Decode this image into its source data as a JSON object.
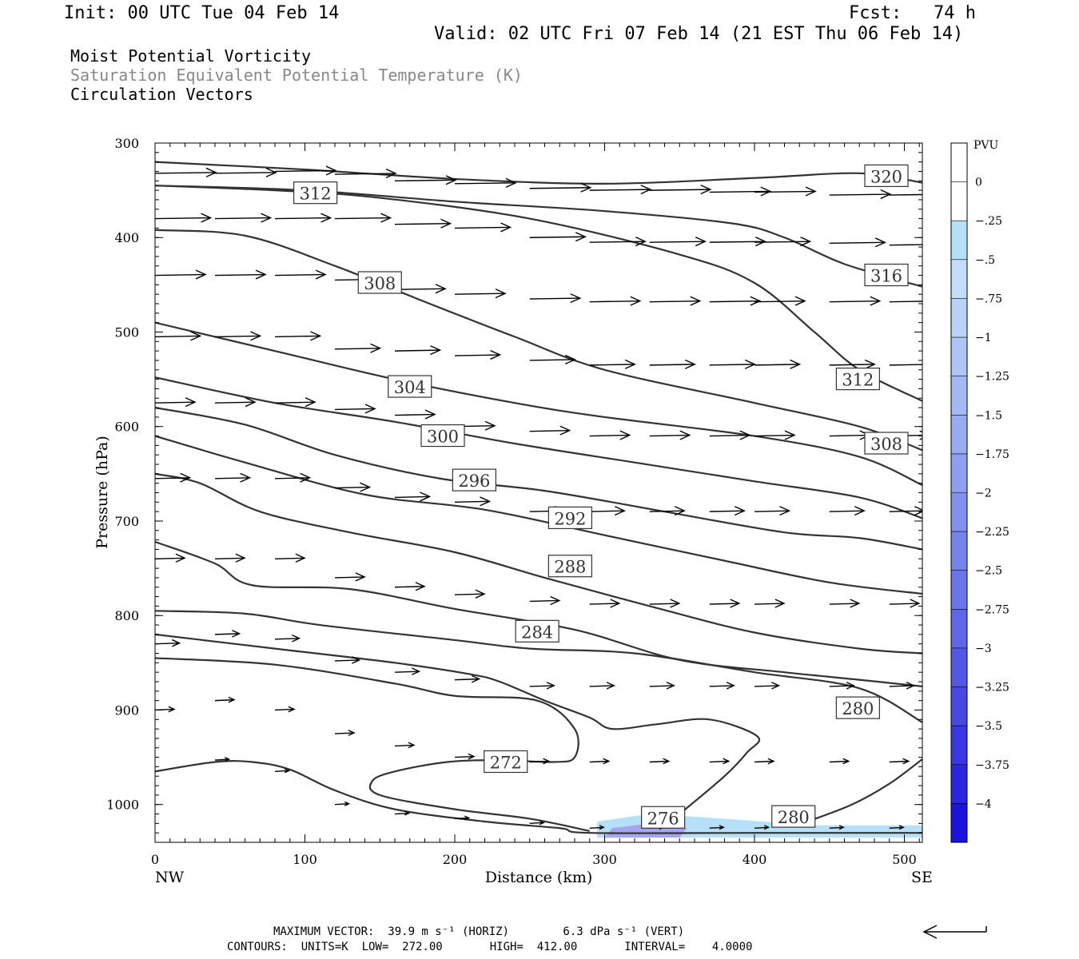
{
  "header": {
    "init": "Init: 00 UTC Tue 04 Feb 14",
    "fcst": "Fcst:   74 h",
    "valid": "Valid: 02 UTC Fri 07 Feb 14 (21 EST Thu 06 Feb 14)",
    "field1": "Moist Potential Vorticity",
    "field2": "Saturation Equivalent Potential Temperature (K)",
    "field3": "Circulation Vectors"
  },
  "footer": {
    "max_vector": "MAXIMUM VECTOR:  39.9 m s⁻¹ (HORIZ)        6.3 dPa s⁻¹ (VERT)",
    "contours": "CONTOURS:  UNITS=K  LOW=  272.00       HIGH=  412.00       INTERVAL=    4.0000"
  },
  "colors": {
    "contour": "#333333",
    "label_box": "#333333",
    "vector": "#000000",
    "pv_light": "#b5e0f8",
    "pv_mid": "#a5a5f0"
  },
  "chart_data": {
    "type": "contour-cross-section",
    "xlabel": "Distance (km)",
    "ylabel": "Pressure (hPa)",
    "x_ticks": [
      "0",
      "100",
      "200",
      "300",
      "400",
      "500"
    ],
    "y_ticks": [
      "300",
      "400",
      "500",
      "600",
      "700",
      "800",
      "900",
      "1000"
    ],
    "xlim": [
      0,
      512
    ],
    "ylim": [
      300,
      1040
    ],
    "x_end_labels": {
      "left": "NW",
      "right": "SE"
    },
    "colorbar": {
      "title": "PVU",
      "labels": [
        "0",
        "-.25",
        "-.5",
        "-.75",
        "-1",
        "-1.25",
        "-1.5",
        "-1.75",
        "-2",
        "-2.25",
        "-2.5",
        "-2.75",
        "-3",
        "-3.25",
        "-3.5",
        "-3.75",
        "-4"
      ],
      "colors": [
        "#ffffff",
        "#ffffff",
        "#b5e0f8",
        "#c2defa",
        "#b8d3f8",
        "#adc6f6",
        "#a3b9f4",
        "#98acf2",
        "#8d9ff0",
        "#8291ee",
        "#7783ec",
        "#6b75ea",
        "#5f66e8",
        "#5357e6",
        "#4647e4",
        "#3837e2",
        "#2a26e0",
        "#1a12dd"
      ]
    },
    "contour_labels": [
      {
        "value": "320",
        "x": 488,
        "p": 335
      },
      {
        "value": "312",
        "x": 107,
        "p": 353
      },
      {
        "value": "316",
        "x": 488,
        "p": 440
      },
      {
        "value": "308",
        "x": 150,
        "p": 448
      },
      {
        "value": "312",
        "x": 469,
        "p": 550
      },
      {
        "value": "304",
        "x": 170,
        "p": 558
      },
      {
        "value": "308",
        "x": 488,
        "p": 618
      },
      {
        "value": "300",
        "x": 192,
        "p": 610
      },
      {
        "value": "296",
        "x": 213,
        "p": 657
      },
      {
        "value": "292",
        "x": 277,
        "p": 697
      },
      {
        "value": "288",
        "x": 277,
        "p": 748
      },
      {
        "value": "284",
        "x": 255,
        "p": 817
      },
      {
        "value": "280",
        "x": 469,
        "p": 898
      },
      {
        "value": "272",
        "x": 234,
        "p": 955
      },
      {
        "value": "276",
        "x": 339,
        "p": 1014
      },
      {
        "value": "280",
        "x": 426,
        "p": 1013
      }
    ],
    "contours": [
      {
        "value": 320,
        "points": [
          [
            0,
            320
          ],
          [
            100,
            328
          ],
          [
            200,
            338
          ],
          [
            300,
            343
          ],
          [
            400,
            337
          ],
          [
            470,
            332
          ],
          [
            512,
            342
          ]
        ]
      },
      {
        "value": 316,
        "points": [
          [
            0,
            345
          ],
          [
            100,
            350
          ],
          [
            200,
            362
          ],
          [
            300,
            372
          ],
          [
            385,
            385
          ],
          [
            420,
            400
          ],
          [
            460,
            428
          ],
          [
            512,
            452
          ]
        ]
      },
      {
        "value": 312,
        "points": [
          [
            0,
            345
          ],
          [
            80,
            350
          ],
          [
            150,
            358
          ],
          [
            250,
            380
          ],
          [
            350,
            418
          ],
          [
            400,
            448
          ],
          [
            440,
            500
          ],
          [
            470,
            540
          ],
          [
            512,
            573
          ]
        ]
      },
      {
        "value": 308,
        "points": [
          [
            0,
            392
          ],
          [
            60,
            398
          ],
          [
            120,
            430
          ],
          [
            180,
            468
          ],
          [
            240,
            505
          ],
          [
            300,
            540
          ],
          [
            400,
            575
          ],
          [
            470,
            600
          ],
          [
            512,
            625
          ]
        ]
      },
      {
        "value": 304,
        "points": [
          [
            0,
            490
          ],
          [
            80,
            520
          ],
          [
            160,
            550
          ],
          [
            240,
            575
          ],
          [
            300,
            590
          ],
          [
            400,
            610
          ],
          [
            470,
            632
          ],
          [
            512,
            662
          ]
        ]
      },
      {
        "value": 300,
        "points": [
          [
            0,
            548
          ],
          [
            80,
            575
          ],
          [
            160,
            595
          ],
          [
            240,
            618
          ],
          [
            320,
            638
          ],
          [
            400,
            658
          ],
          [
            470,
            675
          ],
          [
            512,
            697
          ]
        ]
      },
      {
        "value": 296,
        "points": [
          [
            0,
            580
          ],
          [
            60,
            598
          ],
          [
            120,
            630
          ],
          [
            190,
            655
          ],
          [
            260,
            668
          ],
          [
            340,
            690
          ],
          [
            420,
            712
          ],
          [
            470,
            718
          ],
          [
            512,
            730
          ]
        ]
      },
      {
        "value": 292,
        "points": [
          [
            0,
            610
          ],
          [
            60,
            638
          ],
          [
            140,
            672
          ],
          [
            220,
            688
          ],
          [
            300,
            715
          ],
          [
            380,
            742
          ],
          [
            450,
            765
          ],
          [
            512,
            777
          ]
        ]
      },
      {
        "value": 288,
        "points": [
          [
            0,
            650
          ],
          [
            30,
            660
          ],
          [
            70,
            690
          ],
          [
            130,
            712
          ],
          [
            200,
            733
          ],
          [
            260,
            760
          ],
          [
            330,
            790
          ],
          [
            400,
            818
          ],
          [
            470,
            835
          ],
          [
            512,
            840
          ]
        ]
      },
      {
        "value": 284,
        "points": [
          [
            0,
            722
          ],
          [
            40,
            745
          ],
          [
            65,
            768
          ],
          [
            130,
            772
          ],
          [
            200,
            793
          ],
          [
            280,
            815
          ],
          [
            350,
            847
          ],
          [
            420,
            860
          ],
          [
            470,
            868
          ],
          [
            512,
            875
          ]
        ]
      },
      {
        "value": 280,
        "points": [
          [
            0,
            795
          ],
          [
            60,
            798
          ],
          [
            110,
            810
          ],
          [
            200,
            826
          ],
          [
            250,
            835
          ],
          [
            320,
            840
          ],
          [
            400,
            860
          ],
          [
            470,
            877
          ],
          [
            512,
            913
          ]
        ]
      },
      {
        "value": 276,
        "points": [
          [
            0,
            820
          ],
          [
            80,
            835
          ],
          [
            160,
            850
          ],
          [
            210,
            862
          ],
          [
            230,
            870
          ],
          [
            260,
            890
          ],
          [
            290,
            908
          ],
          [
            305,
            920
          ],
          [
            335,
            915
          ],
          [
            370,
            910
          ],
          [
            402,
            928
          ],
          [
            395,
            945
          ],
          [
            380,
            970
          ],
          [
            350,
            1010
          ]
        ]
      },
      {
        "value": 272,
        "points": [
          [
            0,
            845
          ],
          [
            80,
            852
          ],
          [
            160,
            872
          ],
          [
            200,
            885
          ],
          [
            255,
            890
          ],
          [
            280,
            920
          ],
          [
            280,
            950
          ],
          [
            265,
            955
          ],
          [
            230,
            953
          ],
          [
            195,
            955
          ],
          [
            160,
            965
          ],
          [
            145,
            975
          ],
          [
            150,
            990
          ],
          [
            200,
            1005
          ],
          [
            250,
            1015
          ],
          [
            290,
            1028
          ]
        ]
      },
      {
        "value": 272,
        "points": [
          [
            0,
            965
          ],
          [
            40,
            955
          ],
          [
            65,
            955
          ],
          [
            90,
            963
          ],
          [
            120,
            985
          ],
          [
            160,
            1005
          ],
          [
            220,
            1018
          ],
          [
            270,
            1025
          ],
          [
            290,
            1030
          ],
          [
            400,
            1030
          ],
          [
            512,
            1030
          ]
        ]
      },
      {
        "value": 280,
        "points": [
          [
            432,
            1020
          ],
          [
            465,
            1000
          ],
          [
            490,
            978
          ],
          [
            512,
            952
          ]
        ]
      }
    ],
    "vectors": [
      [
        [
          0,
          332
        ],
        [
          40,
          332
        ],
        [
          80,
          330
        ],
        [
          120,
          333
        ],
        [
          160,
          340
        ],
        [
          200,
          343
        ],
        [
          250,
          348
        ],
        [
          290,
          350
        ],
        [
          330,
          350
        ],
        [
          370,
          352
        ],
        [
          400,
          352
        ],
        [
          450,
          355
        ],
        [
          490,
          355
        ]
      ],
      [
        [
          0,
          380
        ],
        [
          40,
          380
        ],
        [
          80,
          380
        ],
        [
          120,
          380
        ],
        [
          160,
          386
        ],
        [
          200,
          390
        ],
        [
          250,
          400
        ],
        [
          290,
          405
        ],
        [
          330,
          405
        ],
        [
          370,
          405
        ],
        [
          400,
          405
        ],
        [
          450,
          406
        ],
        [
          490,
          408
        ]
      ],
      [
        [
          0,
          440
        ],
        [
          40,
          440
        ],
        [
          80,
          440
        ],
        [
          120,
          445
        ],
        [
          160,
          455
        ],
        [
          200,
          460
        ],
        [
          250,
          465
        ],
        [
          290,
          468
        ],
        [
          330,
          468
        ],
        [
          370,
          468
        ],
        [
          400,
          468
        ],
        [
          450,
          468
        ],
        [
          490,
          468
        ]
      ],
      [
        [
          0,
          505
        ],
        [
          40,
          505
        ],
        [
          80,
          505
        ],
        [
          120,
          518
        ],
        [
          160,
          520
        ],
        [
          200,
          525
        ],
        [
          250,
          530
        ],
        [
          290,
          535
        ],
        [
          330,
          535
        ],
        [
          370,
          535
        ],
        [
          400,
          535
        ],
        [
          450,
          535
        ],
        [
          490,
          535
        ]
      ],
      [
        [
          0,
          575
        ],
        [
          40,
          575
        ],
        [
          80,
          575
        ],
        [
          120,
          582
        ],
        [
          160,
          588
        ],
        [
          200,
          600
        ],
        [
          250,
          605
        ],
        [
          290,
          610
        ],
        [
          330,
          610
        ],
        [
          370,
          610
        ],
        [
          400,
          610
        ],
        [
          450,
          610
        ],
        [
          490,
          610
        ]
      ],
      [
        [
          0,
          655
        ],
        [
          40,
          655
        ],
        [
          80,
          655
        ],
        [
          120,
          665
        ],
        [
          160,
          675
        ],
        [
          200,
          680
        ],
        [
          250,
          690
        ],
        [
          290,
          690
        ],
        [
          330,
          690
        ],
        [
          370,
          690
        ],
        [
          400,
          690
        ],
        [
          450,
          690
        ],
        [
          490,
          690
        ]
      ],
      [
        [
          0,
          740
        ],
        [
          40,
          740
        ],
        [
          80,
          740
        ],
        [
          120,
          760
        ],
        [
          160,
          770
        ],
        [
          200,
          778
        ],
        [
          250,
          785
        ],
        [
          290,
          788
        ],
        [
          330,
          788
        ],
        [
          370,
          788
        ],
        [
          400,
          788
        ],
        [
          450,
          788
        ],
        [
          490,
          788
        ]
      ],
      [
        [
          0,
          830
        ],
        [
          40,
          820
        ],
        [
          80,
          825
        ],
        [
          120,
          848
        ],
        [
          160,
          860
        ],
        [
          200,
          868
        ],
        [
          250,
          875
        ],
        [
          290,
          875
        ],
        [
          330,
          875
        ],
        [
          370,
          875
        ],
        [
          400,
          875
        ],
        [
          450,
          875
        ],
        [
          490,
          875
        ]
      ],
      [
        [
          0,
          900
        ],
        [
          40,
          890
        ],
        [
          80,
          900
        ],
        [
          120,
          925
        ],
        [
          160,
          938
        ],
        [
          200,
          950
        ],
        [
          250,
          955
        ],
        [
          290,
          955
        ],
        [
          330,
          955
        ],
        [
          370,
          955
        ],
        [
          400,
          955
        ],
        [
          450,
          955
        ],
        [
          490,
          955
        ]
      ],
      [
        [
          40,
          953
        ],
        [
          80,
          965
        ],
        [
          120,
          1000
        ],
        [
          160,
          1010
        ],
        [
          200,
          1015
        ],
        [
          250,
          1020
        ],
        [
          290,
          1025
        ],
        [
          330,
          1025
        ],
        [
          370,
          1025
        ],
        [
          400,
          1025
        ],
        [
          450,
          1025
        ],
        [
          490,
          1025
        ]
      ]
    ],
    "shading": [
      {
        "color": "#b5e0f8",
        "points": [
          [
            295,
            1035
          ],
          [
            295,
            1018
          ],
          [
            330,
            1010
          ],
          [
            380,
            1015
          ],
          [
            440,
            1022
          ],
          [
            490,
            1022
          ],
          [
            512,
            1022
          ],
          [
            512,
            1035
          ]
        ]
      },
      {
        "color": "#a5a5f0",
        "points": [
          [
            300,
            1035
          ],
          [
            305,
            1025
          ],
          [
            330,
            1020
          ],
          [
            355,
            1025
          ],
          [
            350,
            1035
          ]
        ]
      }
    ],
    "top_vector": {
      "label": "MAXIMUM VECTOR"
    }
  }
}
